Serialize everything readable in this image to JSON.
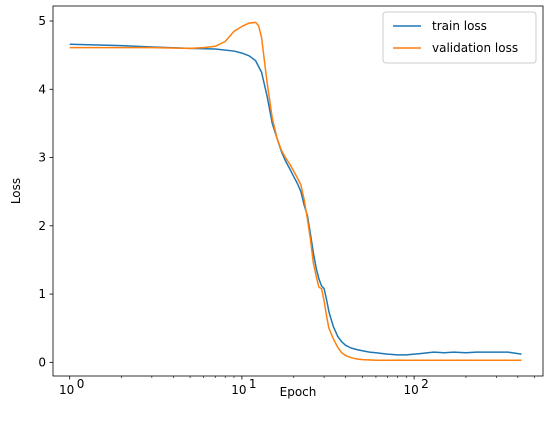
{
  "chart_data": {
    "type": "line",
    "xlabel": "Epoch",
    "ylabel": "Loss",
    "x_scale": "log",
    "xlim": [
      0.8,
      560
    ],
    "ylim": [
      -0.2,
      5.22
    ],
    "grid": false,
    "legend_position": "top-right",
    "x_ticks": [
      {
        "value": 1,
        "label": "10",
        "exp": "0"
      },
      {
        "value": 10,
        "label": "10",
        "exp": "1"
      },
      {
        "value": 100,
        "label": "10",
        "exp": "2"
      }
    ],
    "y_ticks": [
      0,
      1,
      2,
      3,
      4,
      5
    ],
    "colors": {
      "train": "#1f77b4",
      "validation": "#ff7f0e"
    },
    "series": [
      {
        "name": "train loss",
        "color": "#1f77b4",
        "points": [
          [
            1,
            4.66
          ],
          [
            2,
            4.64
          ],
          [
            3,
            4.62
          ],
          [
            5,
            4.6
          ],
          [
            7,
            4.59
          ],
          [
            9,
            4.56
          ],
          [
            10,
            4.53
          ],
          [
            11,
            4.49
          ],
          [
            12,
            4.42
          ],
          [
            13,
            4.25
          ],
          [
            14,
            3.9
          ],
          [
            15,
            3.5
          ],
          [
            16,
            3.28
          ],
          [
            17,
            3.08
          ],
          [
            18,
            2.94
          ],
          [
            19,
            2.83
          ],
          [
            20,
            2.72
          ],
          [
            21,
            2.62
          ],
          [
            22,
            2.5
          ],
          [
            23,
            2.3
          ],
          [
            24,
            2.15
          ],
          [
            25,
            1.88
          ],
          [
            26,
            1.6
          ],
          [
            27,
            1.38
          ],
          [
            28,
            1.22
          ],
          [
            29,
            1.12
          ],
          [
            30,
            1.08
          ],
          [
            31,
            0.92
          ],
          [
            32,
            0.74
          ],
          [
            34,
            0.52
          ],
          [
            36,
            0.38
          ],
          [
            38,
            0.3
          ],
          [
            40,
            0.25
          ],
          [
            43,
            0.21
          ],
          [
            46,
            0.19
          ],
          [
            50,
            0.17
          ],
          [
            55,
            0.15
          ],
          [
            60,
            0.14
          ],
          [
            70,
            0.12
          ],
          [
            80,
            0.11
          ],
          [
            90,
            0.11
          ],
          [
            100,
            0.12
          ],
          [
            110,
            0.13
          ],
          [
            120,
            0.14
          ],
          [
            130,
            0.15
          ],
          [
            150,
            0.14
          ],
          [
            170,
            0.15
          ],
          [
            200,
            0.14
          ],
          [
            230,
            0.15
          ],
          [
            260,
            0.15
          ],
          [
            300,
            0.15
          ],
          [
            350,
            0.15
          ],
          [
            420,
            0.12
          ]
        ]
      },
      {
        "name": "validation loss",
        "color": "#ff7f0e",
        "points": [
          [
            1,
            4.61
          ],
          [
            2,
            4.61
          ],
          [
            3,
            4.61
          ],
          [
            5,
            4.6
          ],
          [
            6,
            4.61
          ],
          [
            7,
            4.63
          ],
          [
            8,
            4.7
          ],
          [
            9,
            4.85
          ],
          [
            10,
            4.92
          ],
          [
            11,
            4.97
          ],
          [
            12,
            4.98
          ],
          [
            12.5,
            4.93
          ],
          [
            13,
            4.76
          ],
          [
            14,
            4.1
          ],
          [
            15,
            3.58
          ],
          [
            16,
            3.28
          ],
          [
            17,
            3.1
          ],
          [
            18,
            2.99
          ],
          [
            19,
            2.9
          ],
          [
            20,
            2.8
          ],
          [
            21,
            2.7
          ],
          [
            22,
            2.6
          ],
          [
            23,
            2.38
          ],
          [
            24,
            2.1
          ],
          [
            25,
            1.8
          ],
          [
            26,
            1.45
          ],
          [
            27,
            1.26
          ],
          [
            28,
            1.1
          ],
          [
            29,
            1.08
          ],
          [
            30,
            0.9
          ],
          [
            31,
            0.68
          ],
          [
            32,
            0.5
          ],
          [
            34,
            0.34
          ],
          [
            36,
            0.22
          ],
          [
            38,
            0.14
          ],
          [
            40,
            0.1
          ],
          [
            43,
            0.07
          ],
          [
            46,
            0.05
          ],
          [
            50,
            0.04
          ],
          [
            60,
            0.03
          ],
          [
            80,
            0.03
          ],
          [
            100,
            0.03
          ],
          [
            150,
            0.03
          ],
          [
            200,
            0.03
          ],
          [
            300,
            0.03
          ],
          [
            420,
            0.03
          ]
        ]
      }
    ]
  }
}
